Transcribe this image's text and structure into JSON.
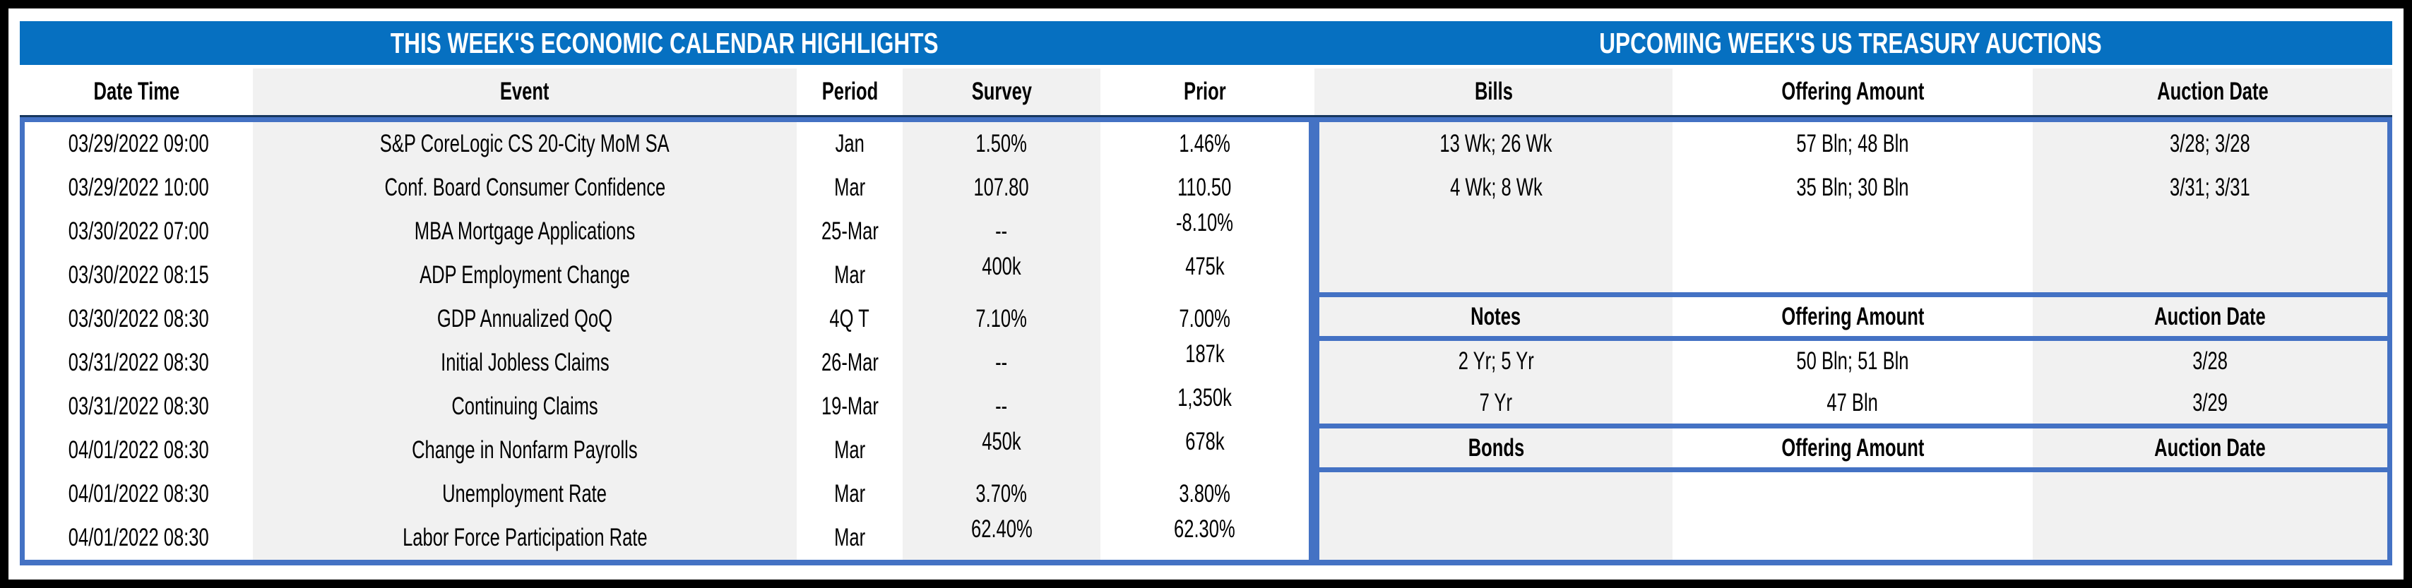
{
  "banner": {
    "left_title": "THIS WEEK'S ECONOMIC CALENDAR HIGHLIGHTS",
    "right_title": "UPCOMING WEEK'S US TREASURY AUCTIONS"
  },
  "economic_calendar": {
    "columns": [
      "Date Time",
      "Event",
      "Period",
      "Survey",
      "Prior"
    ],
    "rows": [
      {
        "date_time": "03/29/2022 09:00",
        "event": "S&P CoreLogic CS 20-City MoM SA",
        "period": "Jan",
        "survey": "1.50%",
        "prior": "1.46%"
      },
      {
        "date_time": "03/29/2022 10:00",
        "event": "Conf. Board Consumer Confidence",
        "period": "Mar",
        "survey": "107.80",
        "prior": "110.50"
      },
      {
        "date_time": "03/30/2022 07:00",
        "event": "MBA Mortgage Applications",
        "period": "25-Mar",
        "survey": "--",
        "prior": "-8.10%"
      },
      {
        "date_time": "03/30/2022 08:15",
        "event": "ADP Employment Change",
        "period": "Mar",
        "survey": "400k",
        "prior": "475k"
      },
      {
        "date_time": "03/30/2022 08:30",
        "event": "GDP Annualized QoQ",
        "period": "4Q T",
        "survey": "7.10%",
        "prior": "7.00%"
      },
      {
        "date_time": "03/31/2022 08:30",
        "event": "Initial Jobless Claims",
        "period": "26-Mar",
        "survey": "--",
        "prior": "187k"
      },
      {
        "date_time": "03/31/2022 08:30",
        "event": "Continuing Claims",
        "period": "19-Mar",
        "survey": "--",
        "prior": "1,350k"
      },
      {
        "date_time": "04/01/2022 08:30",
        "event": "Change in Nonfarm Payrolls",
        "period": "Mar",
        "survey": "450k",
        "prior": "678k"
      },
      {
        "date_time": "04/01/2022 08:30",
        "event": "Unemployment Rate",
        "period": "Mar",
        "survey": "3.70%",
        "prior": "3.80%"
      },
      {
        "date_time": "04/01/2022 08:30",
        "event": "Labor Force Participation Rate",
        "period": "Mar",
        "survey": "62.40%",
        "prior": "62.30%"
      }
    ]
  },
  "treasury_auctions": {
    "bills": {
      "columns": [
        "Bills",
        "Offering Amount",
        "Auction Date"
      ],
      "rows": [
        {
          "security": "13 Wk; 26 Wk",
          "offering_amount": "57 Bln; 48 Bln",
          "auction_date": "3/28; 3/28"
        },
        {
          "security": "4 Wk; 8 Wk",
          "offering_amount": "35 Bln; 30 Bln",
          "auction_date": "3/31; 3/31"
        }
      ]
    },
    "notes": {
      "columns": [
        "Notes",
        "Offering Amount",
        "Auction Date"
      ],
      "rows": [
        {
          "security": "2 Yr; 5 Yr",
          "offering_amount": "50 Bln; 51 Bln",
          "auction_date": "3/28"
        },
        {
          "security": "7 Yr",
          "offering_amount": "47 Bln",
          "auction_date": "3/29"
        }
      ]
    },
    "bonds": {
      "columns": [
        "Bonds",
        "Offering Amount",
        "Auction Date"
      ],
      "rows": []
    }
  },
  "colors": {
    "banner_blue": "#0670C1",
    "border_blue": "#4472C4",
    "border_blue_dark": "#17375E",
    "stripe_gray": "#F1F1F1",
    "frame_black": "#000000"
  }
}
